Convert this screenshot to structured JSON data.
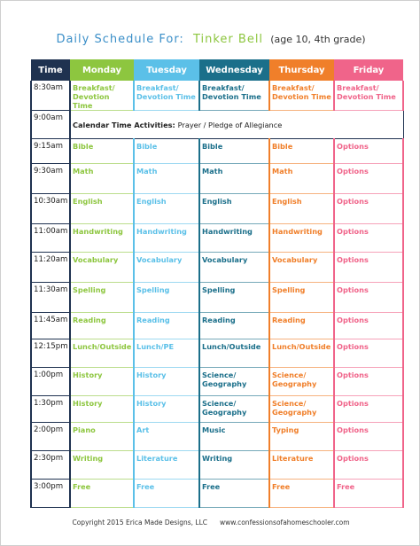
{
  "header": {
    "title": "Daily Schedule For:",
    "name": "Tinker Bell",
    "detail": "(age 10, 4th grade)"
  },
  "table": {
    "columns": [
      "Time",
      "Monday",
      "Tuesday",
      "Wednesday",
      "Thursday",
      "Friday"
    ],
    "rows": [
      {
        "time": "8:30am",
        "cells": [
          "Breakfast/ Devotion Time",
          "Breakfast/ Devotion Time",
          "Breakfast/ Devotion Time",
          "Breakfast/ Devotion Time",
          "Breakfast/ Devotion Time"
        ]
      },
      {
        "time": "9:00am",
        "note": {
          "label": "Calendar Time Activities:",
          "text": "Prayer / Pledge of Allegiance"
        }
      },
      {
        "time": "9:15am",
        "cells": [
          "Bible",
          "Bible",
          "Bible",
          "Bible",
          "Options"
        ]
      },
      {
        "time": "9:30am",
        "cells": [
          "Math",
          "Math",
          "Math",
          "Math",
          "Options"
        ]
      },
      {
        "time": "10:30am",
        "cells": [
          "English",
          "English",
          "English",
          "English",
          "Options"
        ]
      },
      {
        "time": "11:00am",
        "cells": [
          "Handwriting",
          "Handwriting",
          "Handwriting",
          "Handwriting",
          "Options"
        ]
      },
      {
        "time": "11:20am",
        "cells": [
          "Vocabulary",
          "Vocabulary",
          "Vocabulary",
          "Vocabulary",
          "Options"
        ]
      },
      {
        "time": "11:30am",
        "cells": [
          "Spelling",
          "Spelling",
          "Spelling",
          "Spelling",
          "Options"
        ]
      },
      {
        "time": "11:45am",
        "cells": [
          "Reading",
          "Reading",
          "Reading",
          "Reading",
          "Options"
        ]
      },
      {
        "time": "12:15pm",
        "cells": [
          "Lunch/Outside",
          "Lunch/PE",
          "Lunch/Outside",
          "Lunch/Outside",
          "Options"
        ]
      },
      {
        "time": "1:00pm",
        "cells": [
          "History",
          "History",
          "Science/ Geography",
          "Science/ Geography",
          "Options"
        ]
      },
      {
        "time": "1:30pm",
        "cells": [
          "History",
          "History",
          "Science/ Geography",
          "Science/ Geography",
          "Options"
        ]
      },
      {
        "time": "2:00pm",
        "cells": [
          "Piano",
          "Art",
          "Music",
          "Typing",
          "Options"
        ]
      },
      {
        "time": "2:30pm",
        "cells": [
          "Writing",
          "Literature",
          "Writing",
          "Literature",
          "Options"
        ]
      },
      {
        "time": "3:00pm",
        "cells": [
          "Free",
          "Free",
          "Free",
          "Free",
          "Free"
        ]
      }
    ]
  },
  "footer": {
    "copyright": "Copyright 2015 Erica Made Designs, LLC",
    "website": "www.confessionsofahomeschooler.com"
  }
}
